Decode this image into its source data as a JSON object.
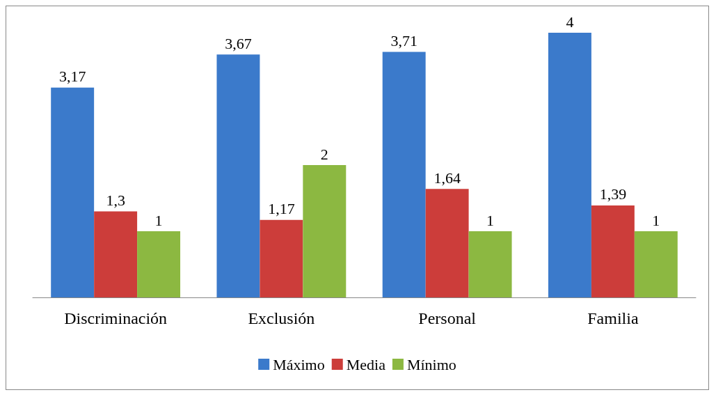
{
  "chart_data": {
    "type": "bar",
    "categories": [
      "Discriminación",
      "Exclusión",
      "Personal",
      "Familia"
    ],
    "series": [
      {
        "name": "Máximo",
        "color": "#3b7acb",
        "values": [
          3.17,
          3.67,
          3.71,
          4
        ],
        "value_labels": [
          "3,17",
          "3,67",
          "3,71",
          "4"
        ]
      },
      {
        "name": "Media",
        "color": "#cc3d3a",
        "values": [
          1.3,
          1.17,
          1.64,
          1.39
        ],
        "value_labels": [
          "1,3",
          "1,17",
          "1,64",
          "1,39"
        ]
      },
      {
        "name": "Mínimo",
        "color": "#8cb841",
        "values": [
          1,
          2,
          1,
          1
        ],
        "value_labels": [
          "1",
          "2",
          "1",
          "1"
        ]
      }
    ],
    "legend": "bottom",
    "grid": false
  }
}
